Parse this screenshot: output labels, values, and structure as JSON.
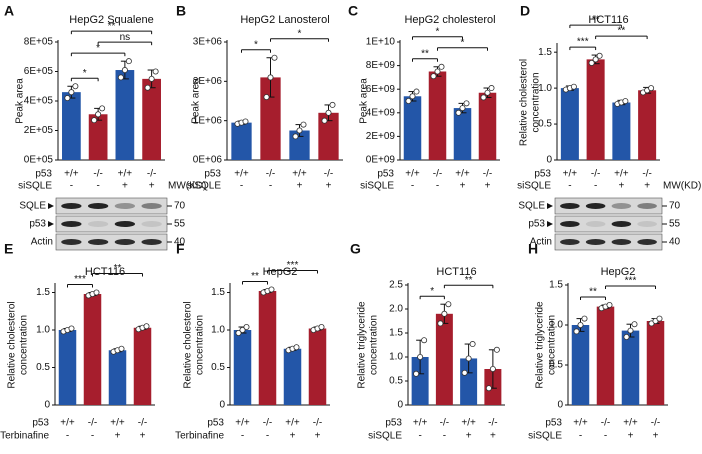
{
  "chart_data": [
    {
      "type": "bar",
      "panel": "A",
      "title": "HepG2  Squalene",
      "ylabel": [
        "Peak area"
      ],
      "values": [
        460000,
        310000,
        610000,
        550000
      ],
      "errors": [
        40000,
        40000,
        60000,
        60000
      ],
      "points": [
        [
          420000,
          460000,
          500000
        ],
        [
          270000,
          310000,
          350000
        ],
        [
          560000,
          610000,
          670000
        ],
        [
          490000,
          550000,
          600000
        ]
      ],
      "colors": [
        "#2356a8",
        "#a61e2d",
        "#2356a8",
        "#a61e2d"
      ],
      "ylim": [
        0,
        800000
      ],
      "yticks": [
        {
          "value": 0,
          "label": "0E+05"
        },
        {
          "value": 200000,
          "label": "2E+05"
        },
        {
          "value": 400000,
          "label": "4E+05"
        },
        {
          "value": 600000,
          "label": "6E+05"
        },
        {
          "value": 800000,
          "label": "8E+05"
        }
      ],
      "conditions": [
        {
          "label": "p53",
          "values": [
            "+/+",
            "-/-",
            "+/+",
            "-/-"
          ]
        },
        {
          "label": "siSQLE",
          "values": [
            "-",
            "-",
            "+",
            "+"
          ]
        }
      ],
      "significance": [
        {
          "between": [
            0,
            1
          ],
          "label": "*"
        },
        {
          "between": [
            0,
            2
          ],
          "label": "*"
        },
        {
          "between": [
            1,
            3
          ],
          "label": "ns"
        },
        {
          "between": [
            0,
            3
          ],
          "label": "**"
        }
      ],
      "blot": {
        "title": "MW(KD)",
        "rows": [
          {
            "label": "SQLE",
            "marker": 70
          },
          {
            "label": "p53",
            "marker": 55
          },
          {
            "label": "Actin",
            "marker": 40
          }
        ]
      }
    },
    {
      "type": "bar",
      "panel": "B",
      "title": "HepG2 Lanosterol",
      "ylabel": [
        "Peak area"
      ],
      "values": [
        950000,
        2100000,
        750000,
        1200000
      ],
      "errors": [
        40000,
        500000,
        150000,
        200000
      ],
      "points": [
        [
          920000,
          950000,
          980000
        ],
        [
          1600000,
          2100000,
          2600000
        ],
        [
          600000,
          750000,
          900000
        ],
        [
          1000000,
          1200000,
          1400000
        ]
      ],
      "colors": [
        "#2356a8",
        "#a61e2d",
        "#2356a8",
        "#a61e2d"
      ],
      "ylim": [
        0,
        3000000
      ],
      "yticks": [
        {
          "value": 0,
          "label": "0E+06"
        },
        {
          "value": 1000000,
          "label": "1E+06"
        },
        {
          "value": 2000000,
          "label": "2E+06"
        },
        {
          "value": 3000000,
          "label": "3E+06"
        }
      ],
      "conditions": [
        {
          "label": "p53",
          "values": [
            "+/+",
            "-/-",
            "+/+",
            "-/-"
          ]
        },
        {
          "label": "siSQLE",
          "values": [
            "-",
            "-",
            "+",
            "+"
          ]
        }
      ],
      "significance": [
        {
          "between": [
            0,
            1
          ],
          "label": "*"
        },
        {
          "between": [
            1,
            3
          ],
          "label": "*"
        }
      ]
    },
    {
      "type": "bar",
      "panel": "C",
      "title": "HepG2 cholesterol",
      "ylabel": [
        "Peak area"
      ],
      "values": [
        5400000000,
        7500000000,
        4400000000,
        5700000000
      ],
      "errors": [
        400000000,
        400000000,
        400000000,
        400000000
      ],
      "points": [
        [
          5000000000,
          5400000000,
          5800000000
        ],
        [
          7100000000,
          7500000000,
          7900000000
        ],
        [
          4000000000,
          4400000000,
          4800000000
        ],
        [
          5300000000,
          5700000000,
          6100000000
        ]
      ],
      "colors": [
        "#2356a8",
        "#a61e2d",
        "#2356a8",
        "#a61e2d"
      ],
      "ylim": [
        0,
        10000000000
      ],
      "yticks": [
        {
          "value": 0,
          "label": "0E+09"
        },
        {
          "value": 2000000000,
          "label": "2E+09"
        },
        {
          "value": 4000000000,
          "label": "4E+09"
        },
        {
          "value": 6000000000,
          "label": "6E+09"
        },
        {
          "value": 8000000000,
          "label": "8E+09"
        },
        {
          "value": 10000000000,
          "label": "1E+10"
        }
      ],
      "conditions": [
        {
          "label": "p53",
          "values": [
            "+/+",
            "-/-",
            "+/+",
            "-/-"
          ]
        },
        {
          "label": "siSQLE",
          "values": [
            "-",
            "-",
            "+",
            "+"
          ]
        }
      ],
      "significance": [
        {
          "between": [
            0,
            1
          ],
          "label": "**"
        },
        {
          "between": [
            1,
            3
          ],
          "label": "*"
        },
        {
          "between": [
            0,
            2
          ],
          "label": "*"
        }
      ]
    },
    {
      "type": "bar",
      "panel": "D",
      "title": "HCT116",
      "ylabel": [
        "Relative cholesterol",
        "concentration"
      ],
      "values": [
        1.0,
        1.4,
        0.8,
        0.97
      ],
      "errors": [
        0.03,
        0.06,
        0.03,
        0.04
      ],
      "points": [
        [
          0.98,
          1.0,
          1.02
        ],
        [
          1.35,
          1.4,
          1.45
        ],
        [
          0.78,
          0.8,
          0.82
        ],
        [
          0.94,
          0.97,
          1.0
        ]
      ],
      "colors": [
        "#2356a8",
        "#a61e2d",
        "#2356a8",
        "#a61e2d"
      ],
      "ylim": [
        0,
        1.6
      ],
      "yticks": [
        0,
        0.5,
        {
          "value": 1,
          "label": "1.0"
        },
        1.5
      ],
      "conditions": [
        {
          "label": "p53",
          "values": [
            "+/+",
            "-/-",
            "+/+",
            "-/-"
          ]
        },
        {
          "label": "siSQLE",
          "values": [
            "-",
            "-",
            "+",
            "+"
          ]
        }
      ],
      "significance": [
        {
          "between": [
            0,
            1
          ],
          "label": "***"
        },
        {
          "between": [
            1,
            3
          ],
          "label": "**"
        },
        {
          "between": [
            0,
            2
          ],
          "label": "**"
        }
      ],
      "blot": {
        "title": "MW(KD)",
        "rows": [
          {
            "label": "SQLE",
            "marker": 70
          },
          {
            "label": "p53",
            "marker": 55
          },
          {
            "label": "Actin",
            "marker": 40
          }
        ]
      }
    },
    {
      "type": "bar",
      "panel": "E",
      "title": "HCT116",
      "ylabel": [
        "Relative cholesterol",
        "concentration"
      ],
      "values": [
        1.0,
        1.48,
        0.73,
        1.03
      ],
      "errors": [
        0.02,
        0.02,
        0.02,
        0.02
      ],
      "points": [
        [
          0.98,
          1.0,
          1.02
        ],
        [
          1.46,
          1.48,
          1.5
        ],
        [
          0.71,
          0.73,
          0.75
        ],
        [
          1.01,
          1.03,
          1.05
        ]
      ],
      "colors": [
        "#2356a8",
        "#a61e2d",
        "#2356a8",
        "#a61e2d"
      ],
      "ylim": [
        0,
        1.6
      ],
      "yticks": [
        0,
        0.5,
        {
          "value": 1,
          "label": "1.0"
        },
        1.5
      ],
      "conditions": [
        {
          "label": "p53",
          "values": [
            "+/+",
            "-/-",
            "+/+",
            "-/-"
          ]
        },
        {
          "label": "Terbinafine",
          "values": [
            "-",
            "-",
            "+",
            "+"
          ]
        }
      ],
      "significance": [
        {
          "between": [
            0,
            1
          ],
          "label": "***"
        },
        {
          "between": [
            1,
            3
          ],
          "label": "**"
        }
      ]
    },
    {
      "type": "bar",
      "panel": "F",
      "title": "HepG2",
      "ylabel": [
        "Relative cholesterol",
        "concentration"
      ],
      "values": [
        1.0,
        1.52,
        0.75,
        1.02
      ],
      "errors": [
        0.04,
        0.02,
        0.02,
        0.02
      ],
      "points": [
        [
          0.96,
          1.0,
          1.04
        ],
        [
          1.5,
          1.52,
          1.54
        ],
        [
          0.73,
          0.75,
          0.77
        ],
        [
          1.0,
          1.02,
          1.04
        ]
      ],
      "colors": [
        "#2356a8",
        "#a61e2d",
        "#2356a8",
        "#a61e2d"
      ],
      "ylim": [
        0,
        1.6
      ],
      "yticks": [
        0,
        0.5,
        {
          "value": 1,
          "label": "1.0"
        },
        1.5
      ],
      "conditions": [
        {
          "label": "p53",
          "values": [
            "+/+",
            "-/-",
            "+/+",
            "-/-"
          ]
        },
        {
          "label": "Terbinafine",
          "values": [
            "-",
            "-",
            "+",
            "+"
          ]
        }
      ],
      "significance": [
        {
          "between": [
            0,
            1
          ],
          "label": "**"
        },
        {
          "between": [
            1,
            3
          ],
          "label": "***"
        }
      ]
    },
    {
      "type": "bar",
      "panel": "G",
      "title": "HCT116",
      "ylabel": [
        "Relative triglyceride",
        "concentration"
      ],
      "values": [
        1.0,
        1.9,
        0.97,
        0.75
      ],
      "errors": [
        0.35,
        0.2,
        0.3,
        0.4
      ],
      "points": [
        [
          0.65,
          1.0,
          1.35
        ],
        [
          1.7,
          1.9,
          2.1
        ],
        [
          0.67,
          0.97,
          1.27
        ],
        [
          0.35,
          0.75,
          1.15
        ]
      ],
      "colors": [
        "#2356a8",
        "#a61e2d",
        "#2356a8",
        "#a61e2d"
      ],
      "ylim": [
        0,
        2.5
      ],
      "yticks": [
        0,
        0.5,
        {
          "value": 1,
          "label": "1.0"
        },
        1.5,
        {
          "value": 2,
          "label": "2.0"
        },
        2.5
      ],
      "conditions": [
        {
          "label": "p53",
          "values": [
            "+/+",
            "-/-",
            "+/+",
            "-/-"
          ]
        },
        {
          "label": "siSQLE",
          "values": [
            "-",
            "-",
            "+",
            "+"
          ]
        }
      ],
      "significance": [
        {
          "between": [
            0,
            1
          ],
          "label": "*"
        },
        {
          "between": [
            1,
            3
          ],
          "label": "**"
        }
      ]
    },
    {
      "type": "bar",
      "panel": "H",
      "title": "HepG2",
      "ylabel": [
        "Relative triglyceride",
        "concentration"
      ],
      "values": [
        1.0,
        1.23,
        0.93,
        1.05
      ],
      "errors": [
        0.08,
        0.02,
        0.08,
        0.03
      ],
      "points": [
        [
          0.92,
          1.0,
          1.08
        ],
        [
          1.21,
          1.23,
          1.25
        ],
        [
          0.85,
          0.93,
          1.01
        ],
        [
          1.02,
          1.05,
          1.08
        ]
      ],
      "colors": [
        "#2356a8",
        "#a61e2d",
        "#2356a8",
        "#a61e2d"
      ],
      "ylim": [
        0,
        1.5
      ],
      "yticks": [
        0,
        0.5,
        {
          "value": 1,
          "label": "1.0"
        },
        1.5
      ],
      "conditions": [
        {
          "label": "p53",
          "values": [
            "+/+",
            "-/-",
            "+/+",
            "-/-"
          ]
        },
        {
          "label": "siSQLE",
          "values": [
            "-",
            "-",
            "+",
            "+"
          ]
        }
      ],
      "significance": [
        {
          "between": [
            0,
            1
          ],
          "label": "**"
        },
        {
          "between": [
            1,
            3
          ],
          "label": "***"
        }
      ]
    }
  ]
}
